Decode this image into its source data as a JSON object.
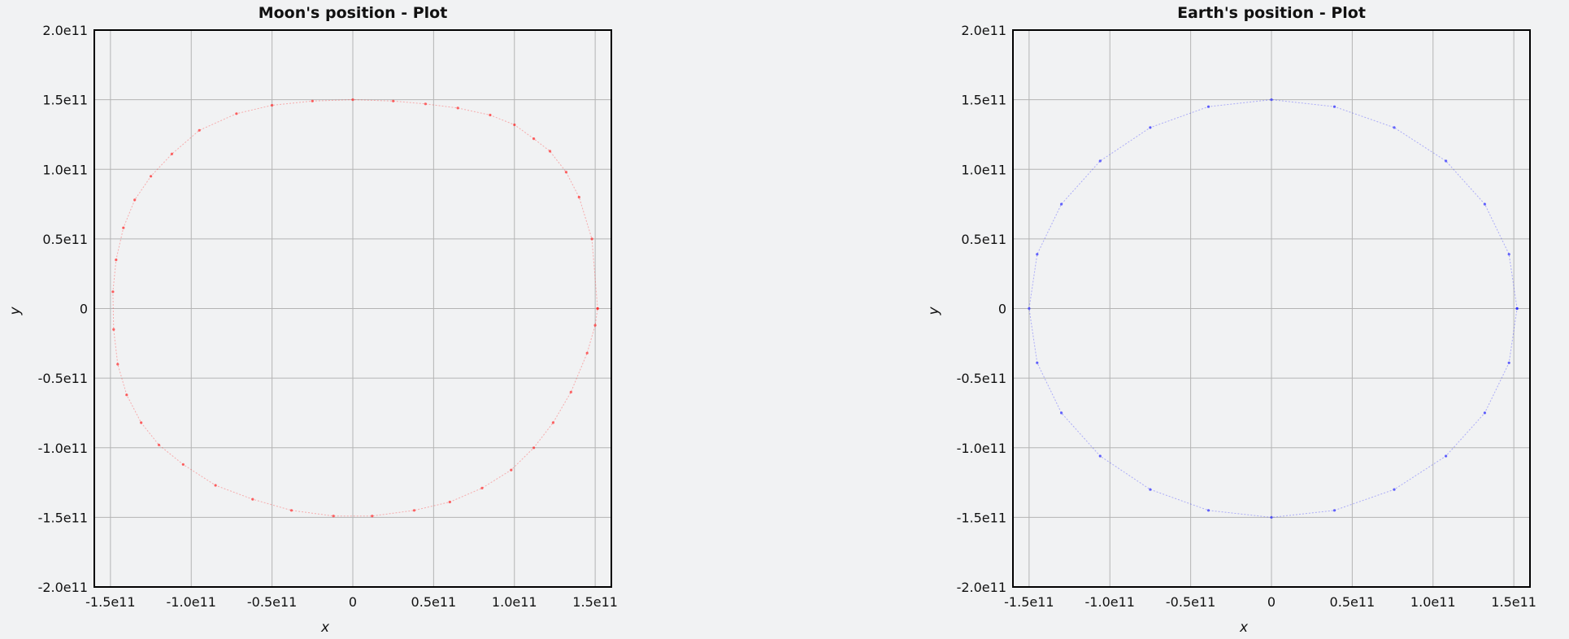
{
  "chart_data": [
    {
      "type": "scatter",
      "title": "Moon's position - Plot",
      "xlabel": "x",
      "ylabel": "y",
      "xlim": [
        -160000000000.0,
        160000000000.0
      ],
      "ylim": [
        -200000000000.0,
        200000000000.0
      ],
      "x_ticks": [
        -150000000000.0,
        -100000000000.0,
        -50000000000.0,
        0,
        50000000000.0,
        100000000000.0,
        150000000000.0
      ],
      "x_tick_labels": [
        "-1.5e11",
        "-1.0e11",
        "-0.5e11",
        "0",
        "0.5e11",
        "1.0e11",
        "1.5e11"
      ],
      "y_ticks": [
        200000000000.0,
        150000000000.0,
        100000000000.0,
        50000000000.0,
        0,
        -50000000000.0,
        -100000000000.0,
        -150000000000.0,
        -200000000000.0
      ],
      "y_tick_labels": [
        "2.0e11",
        "1.5e11",
        "1.0e11",
        "0.5e11",
        "0",
        "-0.5e11",
        "-1.0e11",
        "-1.5e11",
        "-2.0e11"
      ],
      "grid": true,
      "color": "#ff2a2a",
      "series": [
        {
          "x": [
            151500000000.0,
            148000000000.0,
            140000000000.0,
            132000000000.0,
            122000000000.0,
            112000000000.0,
            100000000000.0,
            85000000000.0,
            65000000000.0,
            45000000000.0,
            25000000000.0,
            0.0,
            -25000000000.0,
            -50000000000.0,
            -72000000000.0,
            -95000000000.0,
            -112000000000.0,
            -125000000000.0,
            -135000000000.0,
            -142000000000.0,
            -146500000000.0,
            -148500000000.0,
            -148000000000.0,
            -145500000000.0,
            -140000000000.0,
            -131000000000.0,
            -120000000000.0,
            -105000000000.0,
            -85000000000.0,
            -62000000000.0,
            -38000000000.0,
            -12000000000.0,
            12000000000.0,
            38000000000.0,
            60000000000.0,
            80000000000.0,
            98000000000.0,
            112000000000.0,
            124000000000.0,
            135000000000.0,
            145000000000.0,
            150000000000.0,
            151500000000.0
          ],
          "y": [
            0.0,
            50000000000.0,
            80000000000.0,
            98000000000.0,
            113000000000.0,
            122000000000.0,
            132000000000.0,
            139000000000.0,
            144000000000.0,
            147000000000.0,
            149000000000.0,
            150000000000.0,
            149000000000.0,
            146000000000.0,
            140000000000.0,
            128000000000.0,
            111000000000.0,
            95000000000.0,
            78000000000.0,
            58000000000.0,
            35000000000.0,
            12000000000.0,
            -15000000000.0,
            -40000000000.0,
            -62000000000.0,
            -82000000000.0,
            -98000000000.0,
            -112000000000.0,
            -127000000000.0,
            -137000000000.0,
            -145000000000.0,
            -149000000000.0,
            -149000000000.0,
            -145000000000.0,
            -139000000000.0,
            -129000000000.0,
            -116000000000.0,
            -100000000000.0,
            -82000000000.0,
            -60000000000.0,
            -32000000000.0,
            -12000000000.0,
            0.0
          ]
        }
      ]
    },
    {
      "type": "scatter",
      "title": "Earth's position - Plot",
      "xlabel": "x",
      "ylabel": "y",
      "xlim": [
        -160000000000.0,
        160000000000.0
      ],
      "ylim": [
        -200000000000.0,
        200000000000.0
      ],
      "x_ticks": [
        -150000000000.0,
        -100000000000.0,
        -50000000000.0,
        0,
        50000000000.0,
        100000000000.0,
        150000000000.0
      ],
      "x_tick_labels": [
        "-1.5e11",
        "-1.0e11",
        "-0.5e11",
        "0",
        "0.5e11",
        "1.0e11",
        "1.5e11"
      ],
      "y_ticks": [
        200000000000.0,
        150000000000.0,
        100000000000.0,
        50000000000.0,
        0,
        -50000000000.0,
        -100000000000.0,
        -150000000000.0,
        -200000000000.0
      ],
      "y_tick_labels": [
        "2.0e11",
        "1.5e11",
        "1.0e11",
        "0.5e11",
        "0",
        "-0.5e11",
        "-1.0e11",
        "-1.5e11",
        "-2.0e11"
      ],
      "grid": true,
      "color": "#2a2aff",
      "series": [
        {
          "x": [
            152000000000.0,
            147000000000.0,
            132000000000.0,
            108000000000.0,
            76000000000.0,
            39000000000.0,
            0.0,
            -39000000000.0,
            -75000000000.0,
            -106000000000.0,
            -130000000000.0,
            -145000000000.0,
            -150000000000.0,
            -145000000000.0,
            -130000000000.0,
            -106000000000.0,
            -75000000000.0,
            -39000000000.0,
            0.0,
            39000000000.0,
            76000000000.0,
            108000000000.0,
            132000000000.0,
            147000000000.0,
            152000000000.0
          ],
          "y": [
            0.0,
            39000000000.0,
            75000000000.0,
            106000000000.0,
            130000000000.0,
            145000000000.0,
            150000000000.0,
            145000000000.0,
            130000000000.0,
            106000000000.0,
            75000000000.0,
            39000000000.0,
            0.0,
            -39000000000.0,
            -75000000000.0,
            -106000000000.0,
            -130000000000.0,
            -145000000000.0,
            -150000000000.0,
            -145000000000.0,
            -130000000000.0,
            -106000000000.0,
            -75000000000.0,
            -39000000000.0,
            0.0
          ]
        }
      ]
    }
  ]
}
